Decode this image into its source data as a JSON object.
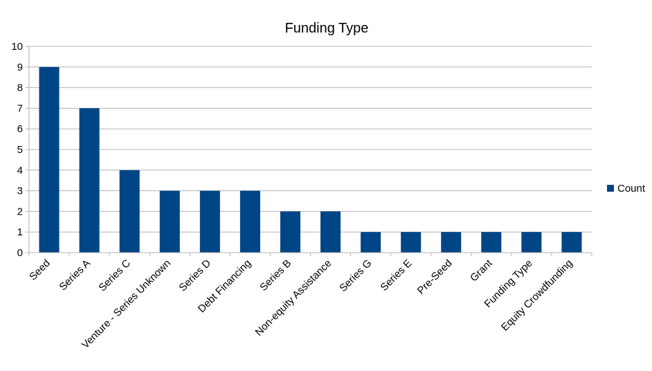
{
  "chart_data": {
    "type": "bar",
    "title": "Funding Type",
    "xlabel": "",
    "ylabel": "",
    "categories": [
      "Seed",
      "Series A",
      "Series C",
      "Venture - Series Unknown",
      "Series D",
      "Debt Financing",
      "Series B",
      "Non-equity Assistance",
      "Series G",
      "Series E",
      "Pre-Seed",
      "Grant",
      "Funding Type",
      "Equity Crowdfunding"
    ],
    "series": [
      {
        "name": "Count",
        "values": [
          9,
          7,
          4,
          3,
          3,
          3,
          2,
          2,
          1,
          1,
          1,
          1,
          1,
          1
        ],
        "color": "#004586"
      }
    ],
    "ylim": [
      0,
      10
    ],
    "yticks": [
      0,
      1,
      2,
      3,
      4,
      5,
      6,
      7,
      8,
      9,
      10
    ],
    "grid": true,
    "legend_position": "right"
  }
}
